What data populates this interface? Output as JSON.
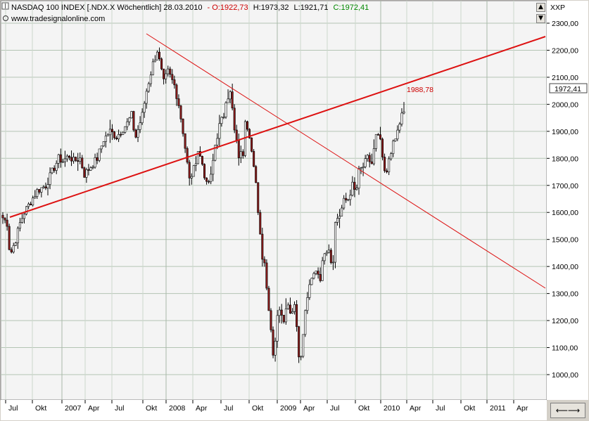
{
  "header": {
    "title": "NASDAQ 100 INDEX [.NDX.X  Wöchentlich] 28.03.2010",
    "open": "- O:1922,73",
    "high": "H:1973,32",
    "low": "L:1921,71",
    "close": "C:1972,41",
    "source": "www.tradesignalonline.com",
    "axis_label": "XXP",
    "colors": {
      "open": "#cc0000",
      "close": "#008800",
      "trend": "#dd1111"
    }
  },
  "last_price_label": "1972,41",
  "annotation_label": "1988,78",
  "chart_data": {
    "type": "candlestick",
    "title": "NASDAQ 100 INDEX [.NDX.X  Wöchentlich] 28.03.2010",
    "x_ticks": [
      "Jul",
      "Okt",
      "2007",
      "Apr",
      "Jul",
      "Okt",
      "2008",
      "Apr",
      "Jul",
      "Okt",
      "2009",
      "Apr",
      "Jul",
      "Okt",
      "2010",
      "Apr",
      "Jul",
      "Okt",
      "2011",
      "Apr"
    ],
    "y_ticks": [
      "2300,00",
      "2200,00",
      "2100,00",
      "2000,00",
      "1900,00",
      "1800,00",
      "1700,00",
      "1600,00",
      "1500,00",
      "1400,00",
      "1300,00",
      "1200,00",
      "1100,00",
      "1000,00"
    ],
    "ylim": [
      960,
      2330
    ],
    "grid": true,
    "series_path": [
      [
        0,
        1580
      ],
      [
        2,
        1560
      ],
      [
        3,
        1470
      ],
      [
        4,
        1455
      ],
      [
        6,
        1500
      ],
      [
        8,
        1560
      ],
      [
        10,
        1600
      ],
      [
        13,
        1640
      ],
      [
        16,
        1680
      ],
      [
        20,
        1700
      ],
      [
        23,
        1750
      ],
      [
        26,
        1800
      ],
      [
        28,
        1790
      ],
      [
        31,
        1810
      ],
      [
        33,
        1790
      ],
      [
        36,
        1800
      ],
      [
        38,
        1740
      ],
      [
        41,
        1770
      ],
      [
        44,
        1800
      ],
      [
        47,
        1870
      ],
      [
        50,
        1900
      ],
      [
        53,
        1880
      ],
      [
        56,
        1910
      ],
      [
        58,
        1930
      ],
      [
        60,
        1960
      ],
      [
        61,
        1910
      ],
      [
        62,
        1880
      ],
      [
        65,
        1960
      ],
      [
        67,
        2050
      ],
      [
        70,
        2150
      ],
      [
        72,
        2200
      ],
      [
        73,
        2160
      ],
      [
        75,
        2080
      ],
      [
        77,
        2120
      ],
      [
        80,
        2070
      ],
      [
        82,
        2000
      ],
      [
        84,
        1900
      ],
      [
        86,
        1780
      ],
      [
        87,
        1720
      ],
      [
        89,
        1760
      ],
      [
        91,
        1830
      ],
      [
        93,
        1780
      ],
      [
        95,
        1700
      ],
      [
        97,
        1730
      ],
      [
        99,
        1850
      ],
      [
        101,
        1920
      ],
      [
        103,
        1960
      ],
      [
        104,
        2020
      ],
      [
        106,
        2040
      ],
      [
        107,
        1980
      ],
      [
        108,
        1900
      ],
      [
        110,
        1810
      ],
      [
        112,
        1820
      ],
      [
        113,
        1950
      ],
      [
        115,
        1890
      ],
      [
        117,
        1760
      ],
      [
        118,
        1700
      ],
      [
        120,
        1520
      ],
      [
        121,
        1440
      ],
      [
        122,
        1420
      ],
      [
        123,
        1320
      ],
      [
        124,
        1250
      ],
      [
        125,
        1170
      ],
      [
        126,
        1080
      ],
      [
        127,
        1130
      ],
      [
        128,
        1210
      ],
      [
        129,
        1250
      ],
      [
        131,
        1210
      ],
      [
        133,
        1270
      ],
      [
        134,
        1230
      ],
      [
        136,
        1260
      ],
      [
        137,
        1180
      ],
      [
        138,
        1080
      ],
      [
        139,
        1060
      ],
      [
        140,
        1150
      ],
      [
        141,
        1230
      ],
      [
        142,
        1290
      ],
      [
        144,
        1350
      ],
      [
        146,
        1390
      ],
      [
        148,
        1360
      ],
      [
        150,
        1460
      ],
      [
        152,
        1470
      ],
      [
        153,
        1420
      ],
      [
        154,
        1430
      ],
      [
        155,
        1560
      ],
      [
        156,
        1580
      ],
      [
        157,
        1590
      ],
      [
        159,
        1640
      ],
      [
        161,
        1650
      ],
      [
        163,
        1700
      ],
      [
        164,
        1680
      ],
      [
        165,
        1690
      ],
      [
        166,
        1750
      ],
      [
        168,
        1770
      ],
      [
        170,
        1800
      ],
      [
        171,
        1790
      ],
      [
        172,
        1780
      ],
      [
        174,
        1880
      ],
      [
        176,
        1870
      ],
      [
        177,
        1790
      ],
      [
        178,
        1750
      ],
      [
        179,
        1740
      ],
      [
        180,
        1800
      ],
      [
        181,
        1830
      ],
      [
        183,
        1870
      ],
      [
        185,
        1930
      ],
      [
        186,
        1960
      ],
      [
        187,
        1972
      ]
    ],
    "trendlines": [
      {
        "from": [
          "2006-07",
          1455
        ],
        "to": [
          "2011-05",
          2220
        ]
      },
      {
        "from": [
          "2007-10",
          2240
        ],
        "to": [
          "2011-05",
          1225
        ]
      }
    ],
    "last_value": 1972.41,
    "annotation_value": 1988.78
  }
}
